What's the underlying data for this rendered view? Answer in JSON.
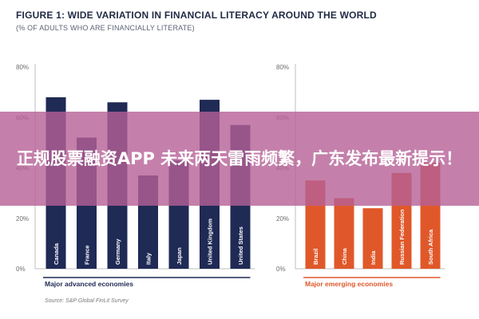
{
  "header": {
    "title": "FIGURE 1: WIDE VARIATION IN FINANCIAL LITERACY AROUND THE WORLD",
    "subtitle": "(% OF ADULTS WHO ARE FINANCIALLY LITERATE)"
  },
  "source": "Source: S&P Global FinLit Survey",
  "banner": {
    "text": "正规股票融资APP 未来两天雷雨频繁，广东发布最新提示！"
  },
  "colors": {
    "advanced": "#1f2a55",
    "emerging": "#e0582a",
    "axis": "#bfbfbf"
  },
  "chart_data": [
    {
      "type": "bar",
      "title": "",
      "xlabel": "Major advanced economies",
      "ylabel": "",
      "ylim": [
        0,
        80
      ],
      "yticks": [
        0,
        20,
        40,
        60,
        80
      ],
      "ytick_labels": [
        "0%",
        "20%",
        "40%",
        "60%",
        "80%"
      ],
      "grid": false,
      "categories": [
        "Canada",
        "France",
        "Germany",
        "Italy",
        "Japan",
        "United Kingdom",
        "United States"
      ],
      "values": [
        68,
        52,
        66,
        37,
        43,
        67,
        57
      ]
    },
    {
      "type": "bar",
      "title": "",
      "xlabel": "Major emerging economies",
      "ylabel": "",
      "ylim": [
        0,
        80
      ],
      "yticks": [
        0,
        20,
        40,
        60,
        80
      ],
      "ytick_labels": [
        "0%",
        "20%",
        "40%",
        "60%",
        "80%"
      ],
      "grid": false,
      "categories": [
        "Brazil",
        "China",
        "India",
        "Russian Federation",
        "South Africa"
      ],
      "values": [
        35,
        28,
        24,
        38,
        42
      ]
    }
  ]
}
